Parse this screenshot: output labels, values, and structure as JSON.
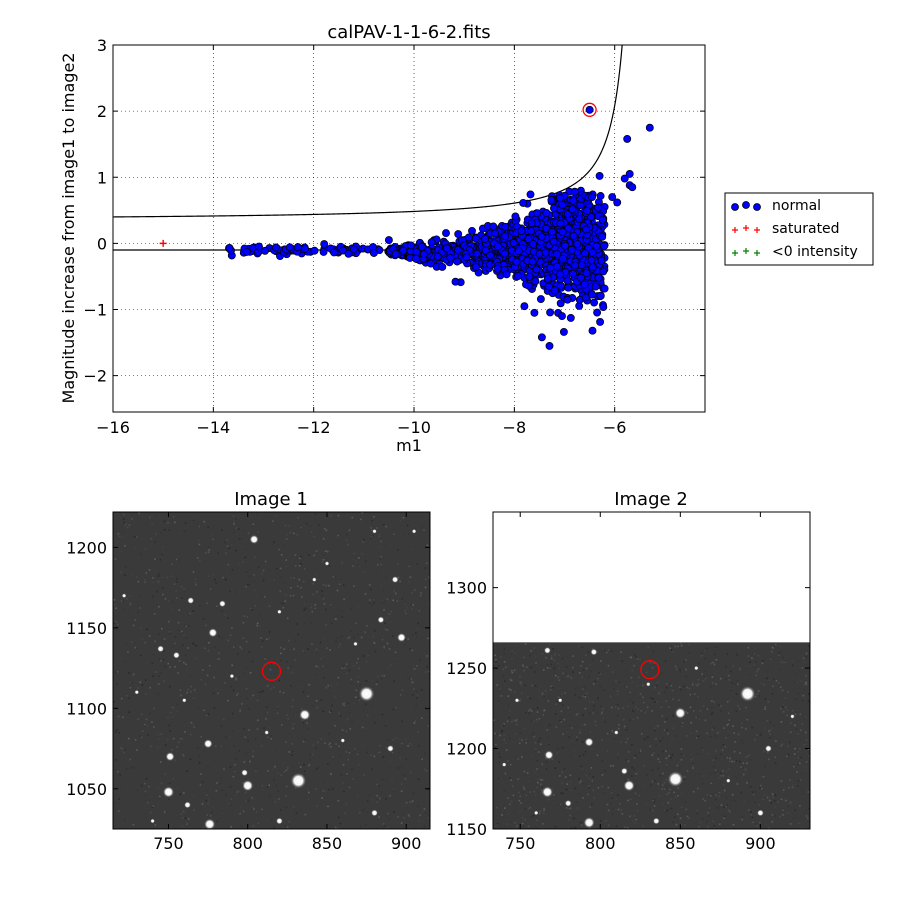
{
  "chart_data": [
    {
      "type": "scatter",
      "title": "calPAV-1-1-6-2.fits",
      "xlabel": "m1",
      "ylabel": "Magnitude increase from image1 to image2",
      "xlim": [
        -16,
        -4.2
      ],
      "ylim": [
        -2.55,
        3
      ],
      "xticks": [
        -16,
        -14,
        -12,
        -10,
        -8,
        -6
      ],
      "yticks": [
        -2,
        -1,
        0,
        1,
        2,
        3
      ],
      "xtick_labels": [
        "−16",
        "−14",
        "−12",
        "−10",
        "−8",
        "−6"
      ],
      "ytick_labels": [
        "−2",
        "−1",
        "0",
        "1",
        "2",
        "3"
      ],
      "grid": true,
      "legend_placement": "outside-right",
      "series": [
        {
          "name": "normal",
          "color": "#0000ff",
          "marker": "circle"
        },
        {
          "name": "saturated",
          "color": "#ff0000",
          "marker": "plus",
          "points": [
            [
              -15.0,
              0.0
            ]
          ]
        },
        {
          "name": "<0 intensity",
          "color": "#008000",
          "marker": "plus",
          "points": []
        }
      ],
      "normal_outliers": [
        [
          -5.3,
          1.75
        ],
        [
          -5.75,
          1.58
        ],
        [
          -5.7,
          0.88
        ],
        [
          -5.65,
          0.85
        ],
        [
          -5.7,
          1.05
        ],
        [
          -5.8,
          0.98
        ],
        [
          -5.95,
          0.62
        ],
        [
          -6.05,
          0.7
        ],
        [
          -6.3,
          1.02
        ],
        [
          -6.45,
          0.7
        ],
        [
          -7.05,
          -1.1
        ],
        [
          -7.3,
          -1.55
        ],
        [
          -7.45,
          -1.42
        ],
        [
          -7.6,
          -1.05
        ],
        [
          -7.8,
          -0.95
        ],
        [
          -10.5,
          0.05
        ],
        [
          -6.6,
          -0.62
        ],
        [
          -6.25,
          0.1
        ]
      ],
      "highlight_point": [
        -6.5,
        2.02
      ],
      "lower_limit": -0.1,
      "upper_curve": {
        "base": 0.4,
        "asymptote_x": -5.2
      }
    },
    {
      "type": "heatmap",
      "title": "Image 1",
      "xlim": [
        715,
        915
      ],
      "ylim": [
        1025,
        1222
      ],
      "xticks": [
        750,
        800,
        850,
        900
      ],
      "yticks": [
        1050,
        1100,
        1150,
        1200
      ],
      "marker_circle": [
        815,
        1123
      ],
      "stars": [
        [
          875,
          1109,
          7
        ],
        [
          832,
          1055,
          7
        ],
        [
          750,
          1048,
          5
        ],
        [
          800,
          1052,
          5
        ],
        [
          776,
          1028,
          5
        ],
        [
          836,
          1096,
          5
        ],
        [
          751,
          1070,
          4
        ],
        [
          775,
          1078,
          4
        ],
        [
          897,
          1144,
          4
        ],
        [
          778,
          1147,
          4
        ],
        [
          804,
          1205,
          4
        ],
        [
          764,
          1167,
          3
        ],
        [
          784,
          1165,
          3
        ],
        [
          820,
          1030,
          3
        ],
        [
          798,
          1060,
          3
        ],
        [
          745,
          1137,
          3
        ],
        [
          755,
          1133,
          3
        ],
        [
          880,
          1035,
          3
        ],
        [
          893,
          1180,
          3
        ],
        [
          884,
          1155,
          3
        ],
        [
          762,
          1040,
          3
        ],
        [
          890,
          1075,
          3
        ],
        [
          730,
          1110,
          2
        ],
        [
          722,
          1170,
          2
        ],
        [
          760,
          1105,
          2
        ],
        [
          850,
          1190,
          2
        ],
        [
          868,
          1140,
          2
        ],
        [
          820,
          1160,
          2
        ],
        [
          905,
          1210,
          2
        ],
        [
          740,
          1030,
          2
        ],
        [
          860,
          1080,
          2
        ],
        [
          812,
          1085,
          2
        ],
        [
          790,
          1120,
          2
        ],
        [
          842,
          1180,
          2
        ],
        [
          880,
          1210,
          2
        ]
      ]
    },
    {
      "type": "heatmap",
      "title": "Image 2",
      "xlim": [
        733,
        931
      ],
      "ylim": [
        1150,
        1347
      ],
      "xticks": [
        750,
        800,
        850,
        900
      ],
      "yticks": [
        1150,
        1200,
        1250,
        1300
      ],
      "data_top": 1266,
      "marker_circle": [
        831,
        1249
      ],
      "stars": [
        [
          892,
          1234,
          7
        ],
        [
          847,
          1181,
          7
        ],
        [
          767,
          1173,
          5
        ],
        [
          818,
          1177,
          5
        ],
        [
          793,
          1154,
          5
        ],
        [
          850,
          1222,
          5
        ],
        [
          768,
          1196,
          4
        ],
        [
          793,
          1204,
          4
        ],
        [
          796,
          1260,
          3
        ],
        [
          767,
          1261,
          3
        ],
        [
          815,
          1186,
          3
        ],
        [
          835,
          1155,
          3
        ],
        [
          900,
          1160,
          3
        ],
        [
          905,
          1200,
          3
        ],
        [
          780,
          1166,
          3
        ],
        [
          748,
          1230,
          2
        ],
        [
          740,
          1190,
          2
        ],
        [
          775,
          1230,
          2
        ],
        [
          810,
          1210,
          2
        ],
        [
          880,
          1180,
          2
        ],
        [
          860,
          1250,
          2
        ],
        [
          920,
          1220,
          2
        ],
        [
          830,
          1240,
          2
        ],
        [
          760,
          1160,
          2
        ]
      ]
    }
  ]
}
